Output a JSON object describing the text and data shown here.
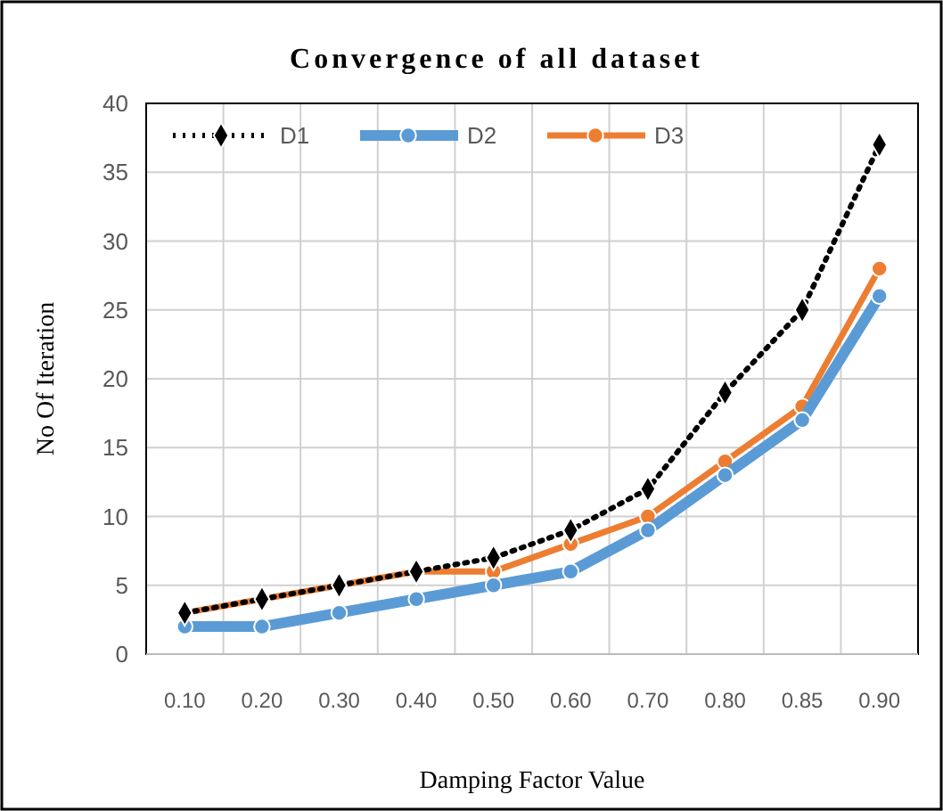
{
  "chart_data": {
    "type": "line",
    "title": "Convergence of all dataset",
    "xlabel": "Damping Factor Value",
    "ylabel": "No Of Iteration",
    "categories": [
      "0.10",
      "0.20",
      "0.30",
      "0.40",
      "0.50",
      "0.60",
      "0.70",
      "0.80",
      "0.85",
      "0.90"
    ],
    "series": [
      {
        "name": "D1",
        "color": "#000000",
        "marker": "diamond",
        "line_style": "dotted",
        "values": [
          3,
          4,
          5,
          6,
          7,
          9,
          12,
          19,
          25,
          37
        ]
      },
      {
        "name": "D2",
        "color": "#5b9bd5",
        "marker": "circle",
        "line_style": "solid",
        "values": [
          2,
          2,
          3,
          4,
          5,
          6,
          9,
          13,
          17,
          26
        ]
      },
      {
        "name": "D3",
        "color": "#ed7d31",
        "marker": "circle",
        "line_style": "solid",
        "values": [
          3,
          4,
          5,
          6,
          6,
          8,
          10,
          14,
          18,
          28
        ]
      }
    ],
    "ylim": [
      0,
      40
    ],
    "yticks": [
      0,
      5,
      10,
      15,
      20,
      25,
      30,
      35,
      40
    ],
    "grid": true,
    "legend": "top left"
  }
}
